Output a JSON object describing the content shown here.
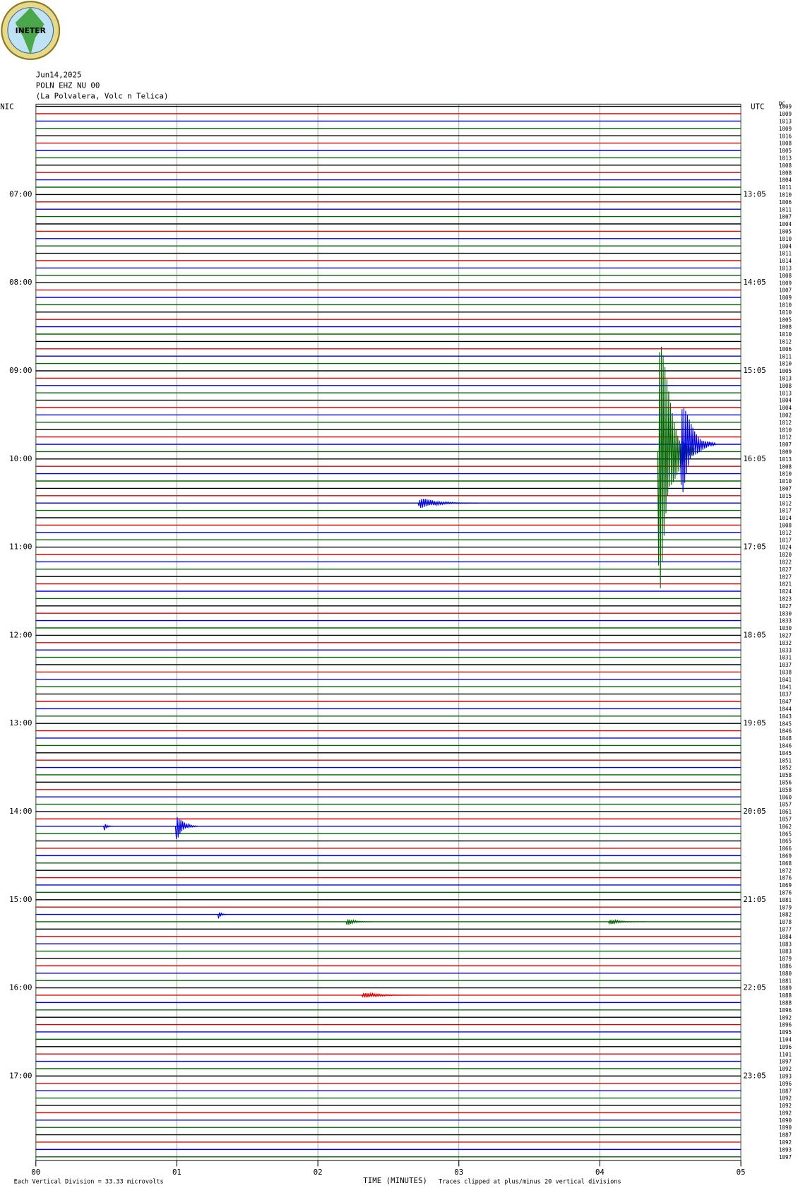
{
  "chart_data": {
    "type": "helicorder",
    "logo_text": "INETER",
    "date": "Jun14,2025",
    "station": "POLN EHZ NU 00",
    "location": "(La Polvalera, Volc n Telica)",
    "left_zone": "NIC",
    "right_zone": "UTC",
    "dc_label": "DC",
    "trace_colors": [
      "#000000",
      "#e00000",
      "#0000e0",
      "#006400"
    ],
    "nic_hours": [
      "07:00",
      "08:00",
      "09:00",
      "10:00",
      "11:00",
      "12:00",
      "13:00",
      "14:00",
      "15:00",
      "16:00",
      "17:00"
    ],
    "utc_hours": [
      "13:05",
      "14:05",
      "15:05",
      "16:05",
      "17:05",
      "18:05",
      "19:05",
      "20:05",
      "21:05",
      "22:05",
      "23:05"
    ],
    "trace_counts": [
      1009,
      1009,
      1013,
      1009,
      1016,
      1008,
      1005,
      1013,
      1008,
      1008,
      1004,
      1011,
      1010,
      1006,
      1011,
      1007,
      1004,
      1005,
      1010,
      1004,
      1011,
      1014,
      1013,
      1008,
      1009,
      1007,
      1009,
      1010,
      1010,
      1005,
      1008,
      1010,
      1012,
      1006,
      1011,
      1010,
      1005,
      1013,
      1008,
      1013,
      1004,
      1004,
      1002,
      1012,
      1010,
      1012,
      1007,
      1009,
      1013,
      1008,
      1010,
      1010,
      1007,
      1015,
      1012,
      1017,
      1014,
      1008,
      1012,
      1017,
      1024,
      1020,
      1022,
      1027,
      1027,
      1021,
      1024,
      1023,
      1027,
      1030,
      1033,
      1030,
      1027,
      1032,
      1033,
      1031,
      1037,
      1038,
      1041,
      1041,
      1037,
      1047,
      1044,
      1043,
      1045,
      1046,
      1048,
      1046,
      1045,
      1051,
      1052,
      1058,
      1056,
      1058,
      1060,
      1057,
      1061,
      1057,
      1062,
      1065,
      1065,
      1066,
      1069,
      1068,
      1072,
      1076,
      1069,
      1076,
      1081,
      1079,
      1082,
      1078,
      1077,
      1084,
      1083,
      1083,
      1079,
      1086,
      1080,
      1081,
      1089,
      1088,
      1088,
      1096,
      1092,
      1096,
      1095,
      1104,
      1096,
      1101,
      1097,
      1092,
      1093,
      1096,
      1087,
      1092,
      1092,
      1092,
      1090,
      1090,
      1087,
      1092,
      1093,
      1097
    ],
    "events": [
      {
        "trace": 47,
        "start": 4.41,
        "end": 4.67,
        "amplitude": 17
      },
      {
        "trace": 46,
        "start": 4.57,
        "end": 4.82,
        "amplitude": 6
      },
      {
        "trace": 54,
        "start": 2.71,
        "end": 3.14,
        "amplitude": 0.6
      },
      {
        "trace": 98,
        "start": 0.99,
        "end": 1.15,
        "amplitude": 1.6
      },
      {
        "trace": 98,
        "start": 0.48,
        "end": 0.55,
        "amplitude": 0.5
      },
      {
        "trace": 110,
        "start": 1.29,
        "end": 1.36,
        "amplitude": 0.5
      },
      {
        "trace": 111,
        "start": 2.2,
        "end": 2.39,
        "amplitude": 0.4
      },
      {
        "trace": 111,
        "start": 4.06,
        "end": 4.33,
        "amplitude": 0.3
      },
      {
        "trace": 121,
        "start": 2.31,
        "end": 2.76,
        "amplitude": 0.3
      }
    ],
    "xlim": [
      0,
      5
    ],
    "xticks": [
      {
        "value": 0,
        "label": "00"
      },
      {
        "value": 1,
        "label": "01"
      },
      {
        "value": 2,
        "label": "02"
      },
      {
        "value": 3,
        "label": "03"
      },
      {
        "value": 4,
        "label": "04"
      },
      {
        "value": 5,
        "label": "05"
      }
    ],
    "xlabel": "TIME (MINUTES)",
    "scale_note": "Each Vertical Division =   33.33 microvolts",
    "clip_note": "Traces clipped at plus/minus 20 vertical divisions",
    "grid": true
  }
}
